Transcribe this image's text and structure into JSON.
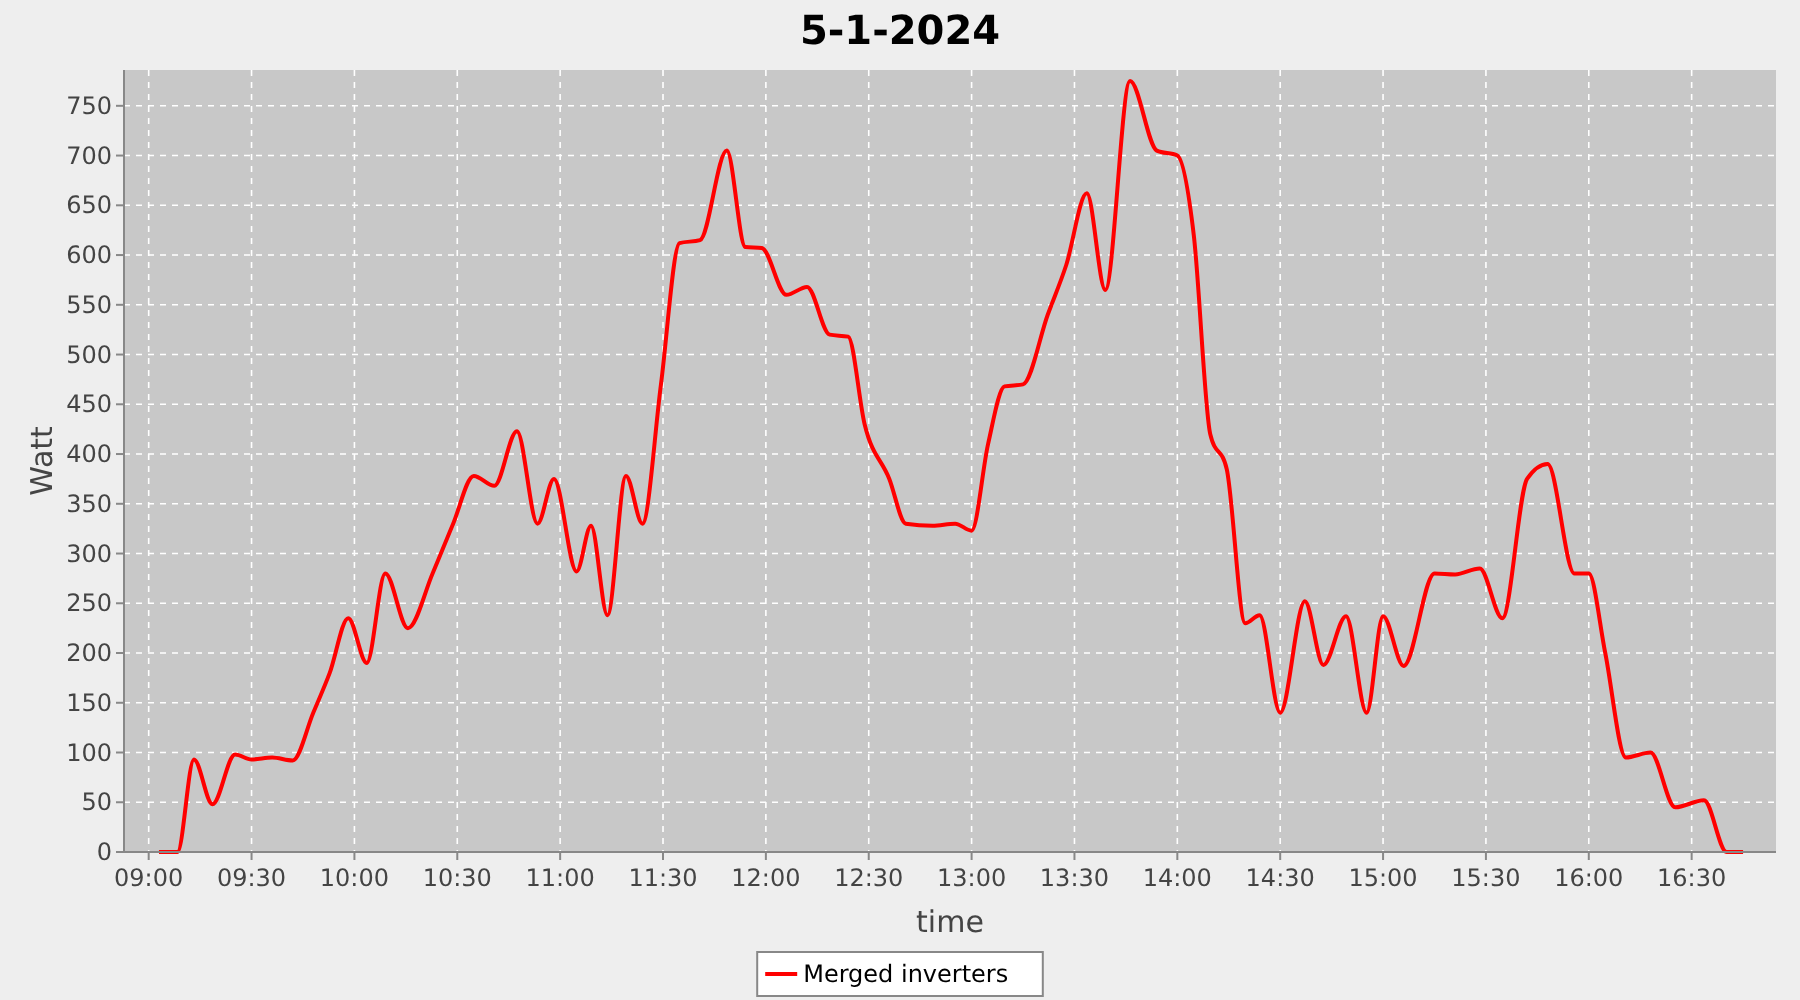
{
  "chart_data": {
    "type": "line",
    "title": "5-1-2024",
    "xlabel": "time",
    "ylabel": "Watt",
    "x": [
      9.05,
      9.14,
      9.22,
      9.31,
      9.42,
      9.5,
      9.6,
      9.7,
      9.8,
      9.88,
      9.97,
      10.06,
      10.15,
      10.26,
      10.38,
      10.48,
      10.58,
      10.68,
      10.79,
      10.89,
      10.97,
      11.08,
      11.15,
      11.23,
      11.32,
      11.4,
      11.49,
      11.58,
      11.68,
      11.81,
      11.9,
      11.98,
      12.1,
      12.2,
      12.31,
      12.4,
      12.48,
      12.6,
      12.68,
      12.81,
      12.92,
      13.0,
      13.08,
      13.16,
      13.25,
      13.37,
      13.46,
      13.56,
      13.65,
      13.77,
      13.9,
      14.0,
      14.08,
      14.16,
      14.24,
      14.33,
      14.4,
      14.5,
      14.62,
      14.71,
      14.82,
      14.92,
      15.0,
      15.1,
      15.25,
      15.35,
      15.47,
      15.58,
      15.7,
      15.8,
      15.93,
      16.0,
      16.08,
      16.18,
      16.3,
      16.42,
      16.56,
      16.67,
      16.75
    ],
    "series": [
      {
        "name": "Merged inverters",
        "color": "#ff0000",
        "values": [
          0,
          0,
          93,
          48,
          98,
          93,
          95,
          92,
          140,
          180,
          235,
          190,
          280,
          225,
          280,
          330,
          378,
          368,
          423,
          330,
          375,
          282,
          328,
          238,
          378,
          330,
          470,
          612,
          615,
          705,
          608,
          607,
          560,
          568,
          520,
          518,
          430,
          375,
          330,
          328,
          330,
          323,
          410,
          468,
          470,
          540,
          590,
          662,
          565,
          775,
          705,
          700,
          620,
          420,
          385,
          230,
          238,
          140,
          252,
          188,
          237,
          140,
          237,
          187,
          280,
          279,
          285,
          235,
          375,
          390,
          280,
          280,
          200,
          95,
          100,
          45,
          52,
          0,
          0
        ]
      }
    ],
    "xlim": [
      8.88,
      16.91
    ],
    "ylim": [
      0,
      786
    ],
    "xticks": [
      {
        "value": 9,
        "label": "09:00"
      },
      {
        "value": 9.5,
        "label": "09:30"
      },
      {
        "value": 10,
        "label": "10:00"
      },
      {
        "value": 10.5,
        "label": "10:30"
      },
      {
        "value": 11,
        "label": "11:00"
      },
      {
        "value": 11.5,
        "label": "11:30"
      },
      {
        "value": 12,
        "label": "12:00"
      },
      {
        "value": 12.5,
        "label": "12:30"
      },
      {
        "value": 13,
        "label": "13:00"
      },
      {
        "value": 13.5,
        "label": "13:30"
      },
      {
        "value": 14,
        "label": "14:00"
      },
      {
        "value": 14.5,
        "label": "14:30"
      },
      {
        "value": 15,
        "label": "15:00"
      },
      {
        "value": 15.5,
        "label": "15:30"
      },
      {
        "value": 16,
        "label": "16:00"
      },
      {
        "value": 16.5,
        "label": "16:30"
      }
    ],
    "yticks": [
      0,
      50,
      100,
      150,
      200,
      250,
      300,
      350,
      400,
      450,
      500,
      550,
      600,
      650,
      700,
      750
    ],
    "grid": true,
    "legend": "bottom",
    "marker": "none",
    "line_style": "solid"
  }
}
